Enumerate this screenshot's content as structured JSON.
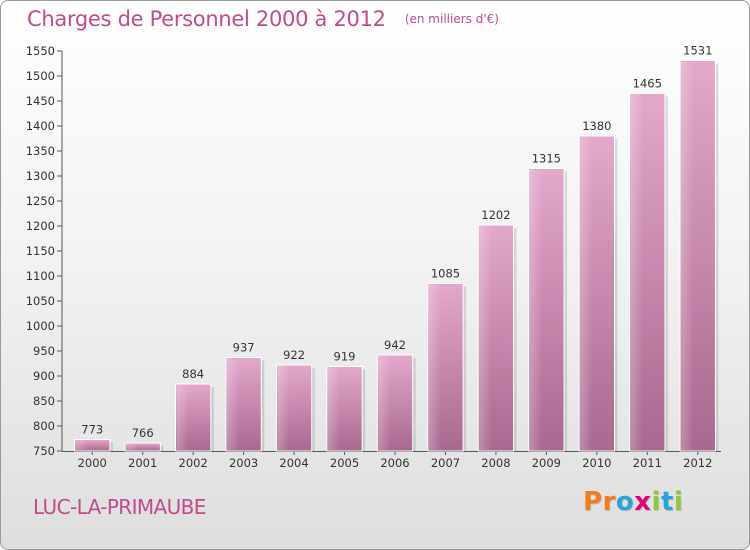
{
  "header": {
    "title": "Charges de Personnel 2000 à 2012",
    "subtitle": "(en milliers d'€)"
  },
  "footer": {
    "commune": "LUC-LA-PRIMAUBE",
    "logo_letters": [
      "P",
      "r",
      "o",
      "x",
      "i",
      "t",
      "i"
    ]
  },
  "colors": {
    "title": "#c04a8c",
    "bar_top": "#e4a8cc",
    "bar_bottom": "#a8688f",
    "logo": [
      "#f07d1a",
      "#f07d1a",
      "#29a3d8",
      "#e2007a",
      "#8dc63f",
      "#29a3d8",
      "#8dc63f"
    ]
  },
  "chart_data": {
    "type": "bar",
    "title": "Charges de Personnel 2000 à 2012",
    "subtitle": "(en milliers d'€)",
    "categories": [
      "2000",
      "2001",
      "2002",
      "2003",
      "2004",
      "2005",
      "2006",
      "2007",
      "2008",
      "2009",
      "2010",
      "2011",
      "2012"
    ],
    "values": [
      773,
      766,
      884,
      937,
      922,
      919,
      942,
      1085,
      1202,
      1315,
      1380,
      1465,
      1531
    ],
    "ylim": [
      750,
      1550
    ],
    "yticks": [
      750,
      800,
      850,
      900,
      950,
      1000,
      1050,
      1100,
      1150,
      1200,
      1250,
      1300,
      1350,
      1400,
      1450,
      1500,
      1550
    ],
    "grid": false,
    "legend": "none"
  }
}
